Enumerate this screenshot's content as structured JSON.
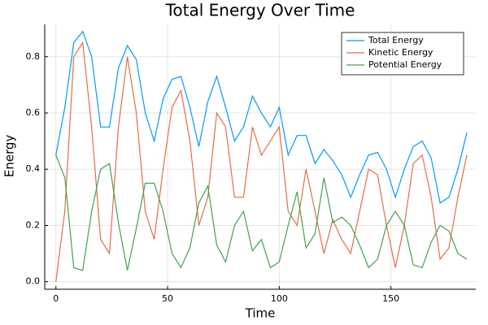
{
  "chart_data": {
    "type": "line",
    "title": "Total Energy Over Time",
    "xlabel": "Time",
    "ylabel": "Energy",
    "x": [
      0,
      4,
      8,
      12,
      16,
      20,
      24,
      28,
      32,
      36,
      40,
      44,
      48,
      52,
      56,
      60,
      64,
      68,
      72,
      76,
      80,
      84,
      88,
      92,
      96,
      100,
      104,
      108,
      112,
      116,
      120,
      124,
      128,
      132,
      136,
      140,
      144,
      148,
      152,
      156,
      160,
      164,
      168,
      172,
      176,
      180,
      184
    ],
    "series": [
      {
        "name": "Total Energy",
        "color": "#009af9",
        "values": [
          0.45,
          0.62,
          0.85,
          0.89,
          0.8,
          0.55,
          0.55,
          0.76,
          0.84,
          0.79,
          0.6,
          0.5,
          0.65,
          0.72,
          0.73,
          0.62,
          0.48,
          0.64,
          0.73,
          0.62,
          0.5,
          0.55,
          0.66,
          0.6,
          0.55,
          0.62,
          0.45,
          0.52,
          0.52,
          0.42,
          0.47,
          0.43,
          0.38,
          0.3,
          0.38,
          0.45,
          0.46,
          0.4,
          0.3,
          0.4,
          0.48,
          0.5,
          0.44,
          0.28,
          0.3,
          0.4,
          0.53
        ]
      },
      {
        "name": "Kinetic Energy",
        "color": "#e26f46",
        "values": [
          0.0,
          0.25,
          0.8,
          0.85,
          0.55,
          0.15,
          0.1,
          0.55,
          0.8,
          0.6,
          0.25,
          0.15,
          0.4,
          0.62,
          0.68,
          0.5,
          0.2,
          0.3,
          0.6,
          0.55,
          0.3,
          0.3,
          0.55,
          0.45,
          0.5,
          0.55,
          0.25,
          0.2,
          0.4,
          0.25,
          0.1,
          0.22,
          0.15,
          0.1,
          0.25,
          0.4,
          0.38,
          0.2,
          0.05,
          0.2,
          0.42,
          0.45,
          0.3,
          0.08,
          0.12,
          0.3,
          0.45
        ]
      },
      {
        "name": "Potential Energy",
        "color": "#3da44d",
        "values": [
          0.45,
          0.37,
          0.05,
          0.04,
          0.25,
          0.4,
          0.42,
          0.21,
          0.04,
          0.19,
          0.35,
          0.35,
          0.25,
          0.1,
          0.05,
          0.12,
          0.28,
          0.34,
          0.13,
          0.07,
          0.2,
          0.25,
          0.11,
          0.15,
          0.05,
          0.07,
          0.2,
          0.32,
          0.12,
          0.17,
          0.37,
          0.21,
          0.23,
          0.2,
          0.13,
          0.05,
          0.08,
          0.2,
          0.25,
          0.2,
          0.06,
          0.05,
          0.14,
          0.2,
          0.18,
          0.1,
          0.08
        ]
      }
    ],
    "xlim": [
      -5,
      188
    ],
    "ylim": [
      -0.027,
      0.915
    ],
    "xticks": [
      0,
      50,
      100,
      150
    ],
    "yticks": [
      {
        "value": 0,
        "label": "0.0"
      },
      0.2,
      0.4,
      0.6,
      0.8
    ],
    "grid": true,
    "legend": "top-right"
  }
}
